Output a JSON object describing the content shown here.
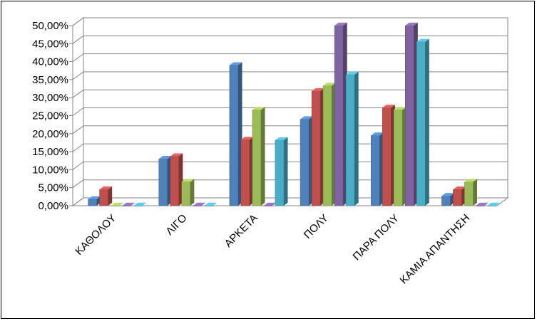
{
  "chart_data": {
    "type": "bar",
    "title": "",
    "xlabel": "",
    "ylabel": "",
    "categories": [
      "ΚΑΘΟΛΟΥ",
      "ΛΙΓΟ",
      "ΑΡΚΕΤΑ",
      "ΠΟΛΥ",
      "ΠΑΡΑ ΠΟΛΥ",
      "ΚΑΜΙΑ ΑΠΑΝΤΗΣΗ"
    ],
    "series": [
      {
        "values": [
          1.8,
          13.0,
          39.0,
          24.0,
          19.5,
          2.7
        ]
      },
      {
        "values": [
          4.5,
          13.7,
          18.3,
          31.8,
          27.2,
          4.5
        ]
      },
      {
        "values": [
          0.0,
          6.6,
          26.6,
          33.3,
          26.6,
          6.6
        ]
      },
      {
        "values": [
          0.0,
          0.0,
          0.0,
          50.0,
          50.0,
          0.0
        ]
      },
      {
        "values": [
          0.0,
          0.0,
          18.2,
          36.4,
          45.5,
          0.0
        ]
      }
    ],
    "colors": [
      "#4F81BD",
      "#C0504D",
      "#9BBB59",
      "#8064A2",
      "#4BACC6"
    ],
    "ylim": [
      0,
      50
    ],
    "y_ticks": [
      "0,00%",
      "5,00%",
      "10,00%",
      "15,00%",
      "20,00%",
      "25,00%",
      "30,00%",
      "35,00%",
      "40,00%",
      "45,00%",
      "50,00%"
    ],
    "grid": true,
    "legend": "none",
    "view": "3d-clustered"
  }
}
